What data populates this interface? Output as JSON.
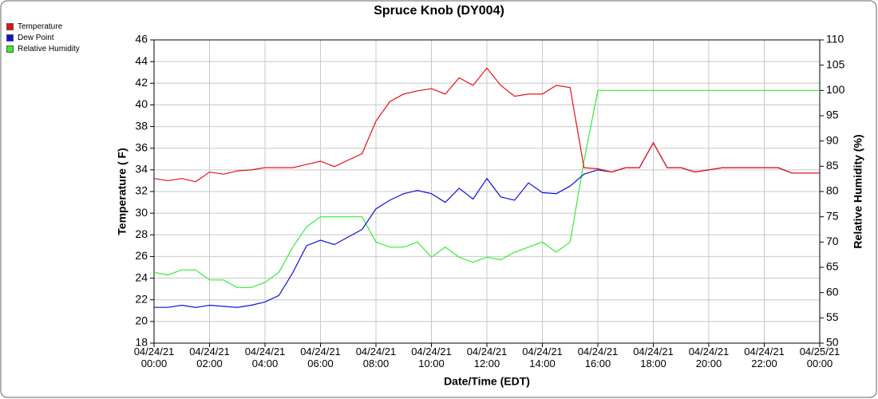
{
  "chart_data": {
    "type": "line",
    "title": "Spruce Knob (DY004)",
    "x_label": "Date/Time (EDT)",
    "y_label": "Temperature ( F)",
    "y2_label": "Relative Humidity (%)",
    "x": [
      "04/24/21 00:00",
      "04/24/21 00:30",
      "04/24/21 01:00",
      "04/24/21 01:30",
      "04/24/21 02:00",
      "04/24/21 02:30",
      "04/24/21 03:00",
      "04/24/21 03:30",
      "04/24/21 04:00",
      "04/24/21 04:30",
      "04/24/21 05:00",
      "04/24/21 05:30",
      "04/24/21 06:00",
      "04/24/21 06:30",
      "04/24/21 07:00",
      "04/24/21 07:30",
      "04/24/21 08:00",
      "04/24/21 08:30",
      "04/24/21 09:00",
      "04/24/21 09:30",
      "04/24/21 10:00",
      "04/24/21 10:30",
      "04/24/21 11:00",
      "04/24/21 11:30",
      "04/24/21 12:00",
      "04/24/21 12:30",
      "04/24/21 13:00",
      "04/24/21 13:30",
      "04/24/21 14:00",
      "04/24/21 14:30",
      "04/24/21 15:00",
      "04/24/21 15:30",
      "04/24/21 16:00",
      "04/24/21 16:30",
      "04/24/21 17:00",
      "04/24/21 17:30",
      "04/24/21 18:00",
      "04/24/21 18:30",
      "04/24/21 19:00",
      "04/24/21 19:30",
      "04/24/21 20:00",
      "04/24/21 20:30",
      "04/24/21 21:00",
      "04/24/21 21:30",
      "04/24/21 22:00",
      "04/24/21 22:30",
      "04/24/21 23:00",
      "04/24/21 23:30",
      "04/25/21 00:00"
    ],
    "series": [
      {
        "name": "Temperature",
        "color": "#e81010",
        "axis": "y",
        "values": [
          33.2,
          33.0,
          33.2,
          32.9,
          33.8,
          33.6,
          33.9,
          34.0,
          34.2,
          34.2,
          34.2,
          34.5,
          34.8,
          34.3,
          34.9,
          35.5,
          38.5,
          40.3,
          41.0,
          41.3,
          41.5,
          41.0,
          42.5,
          41.8,
          43.4,
          41.8,
          40.8,
          41.0,
          41.0,
          41.8,
          41.6,
          34.2,
          34.1,
          33.8,
          34.2,
          34.2,
          36.5,
          34.2,
          34.2,
          33.8,
          34.0,
          34.2,
          34.2,
          34.2,
          34.2,
          34.2,
          33.7,
          33.7,
          33.7
        ]
      },
      {
        "name": "Dew Point",
        "color": "#1010e0",
        "axis": "y",
        "values": [
          21.3,
          21.3,
          21.5,
          21.3,
          21.5,
          21.4,
          21.3,
          21.5,
          21.8,
          22.4,
          24.5,
          27.0,
          27.5,
          27.1,
          27.8,
          28.5,
          30.4,
          31.2,
          31.8,
          32.1,
          31.8,
          31.0,
          32.3,
          31.3,
          33.2,
          31.5,
          31.2,
          32.8,
          31.9,
          31.8,
          32.5,
          33.6,
          34.0,
          33.8,
          34.2,
          34.2,
          36.5,
          34.2,
          34.2,
          33.8,
          34.0,
          34.2,
          34.2,
          34.2,
          34.2,
          34.2,
          33.7,
          33.7,
          33.7
        ]
      },
      {
        "name": "Relative Humidity",
        "color": "#33ee33",
        "axis": "y2",
        "values": [
          64,
          63.5,
          64.5,
          64.5,
          62.5,
          62.5,
          61,
          61,
          62,
          64,
          69,
          73,
          75,
          75,
          75,
          75,
          70,
          69,
          69,
          70,
          67,
          69,
          67,
          66,
          67,
          66.5,
          68,
          69,
          70,
          68,
          70,
          86,
          100,
          100,
          100,
          100,
          100,
          100,
          100,
          100,
          100,
          100,
          100,
          100,
          100,
          100,
          100,
          100,
          100
        ]
      }
    ],
    "xlim": [
      "04/24/21 00:00",
      "04/25/21 00:00"
    ],
    "xticks": [
      {
        "value": "04/24/21 00:00",
        "label": "04/24/21\n00:00"
      },
      {
        "value": "04/24/21 02:00",
        "label": "04/24/21\n02:00"
      },
      {
        "value": "04/24/21 04:00",
        "label": "04/24/21\n04:00"
      },
      {
        "value": "04/24/21 06:00",
        "label": "04/24/21\n06:00"
      },
      {
        "value": "04/24/21 08:00",
        "label": "04/24/21\n08:00"
      },
      {
        "value": "04/24/21 10:00",
        "label": "04/24/21\n10:00"
      },
      {
        "value": "04/24/21 12:00",
        "label": "04/24/21\n12:00"
      },
      {
        "value": "04/24/21 14:00",
        "label": "04/24/21\n14:00"
      },
      {
        "value": "04/24/21 16:00",
        "label": "04/24/21\n16:00"
      },
      {
        "value": "04/24/21 18:00",
        "label": "04/24/21\n18:00"
      },
      {
        "value": "04/24/21 20:00",
        "label": "04/24/21\n20:00"
      },
      {
        "value": "04/24/21 22:00",
        "label": "04/24/21\n22:00"
      },
      {
        "value": "04/25/21 00:00",
        "label": "04/25/21\n00:00"
      }
    ],
    "ylim": [
      18,
      46
    ],
    "yticks": [
      18,
      20,
      22,
      24,
      26,
      28,
      30,
      32,
      34,
      36,
      38,
      40,
      42,
      44,
      46
    ],
    "y2lim": [
      50,
      110
    ],
    "y2ticks": [
      50,
      55,
      60,
      65,
      70,
      75,
      80,
      85,
      90,
      95,
      100,
      105,
      110
    ],
    "grid": true
  }
}
